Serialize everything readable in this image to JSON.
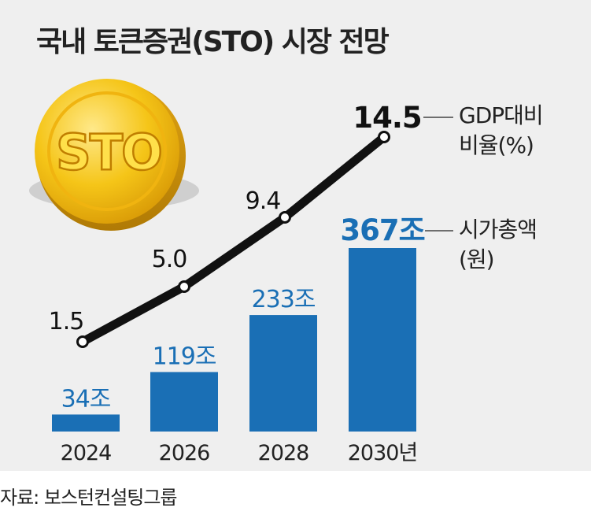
{
  "title": "국내 토큰증권(STO) 시장 전망",
  "source": "자료: 보스턴컨설팅그룹",
  "coin_label": "STO",
  "colors": {
    "bar": "#1a6fb5",
    "bar_label": "#1a6fb5",
    "line": "#111111",
    "background": "#efefef",
    "coin": "#f5c518"
  },
  "chart_data": {
    "type": "bar",
    "categories": [
      "2024",
      "2026",
      "2028",
      "2030년"
    ],
    "series": [
      {
        "name": "시가총액 (원)",
        "type": "bar",
        "values": [
          34,
          119,
          233,
          367
        ],
        "labels": [
          "34조",
          "119조",
          "233조",
          "367조"
        ]
      },
      {
        "name": "GDP대비 비율(%)",
        "type": "line",
        "values": [
          1.5,
          5.0,
          9.4,
          14.5
        ],
        "labels": [
          "1.5",
          "5.0",
          "9.4",
          "14.5"
        ]
      }
    ],
    "legend": {
      "line_lines": [
        "GDP대비",
        "비율(%)"
      ],
      "bar_lines": [
        "시가총액",
        "(원)"
      ]
    }
  }
}
